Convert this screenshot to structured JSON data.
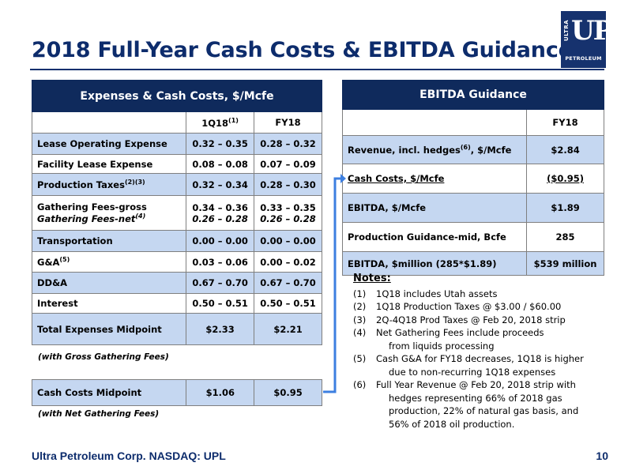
{
  "title": "2018 Full-Year Cash Costs & EBITDA Guidance",
  "logo": {
    "ultra": "ULTRA",
    "up": "UP",
    "petroleum": "PETROLEUM"
  },
  "expenses_table": {
    "header": "Expenses & Cash Costs, $/Mcfe",
    "col1": "1Q18",
    "col1_sup": "(1)",
    "col2": "FY18",
    "rows": [
      {
        "label": "Lease Operating Expense",
        "sup": "",
        "q": "0.32 – 0.35",
        "fy": "0.28 – 0.32"
      },
      {
        "label": "Facility Lease Expense",
        "sup": "",
        "q": "0.08 – 0.08",
        "fy": "0.07 – 0.09"
      },
      {
        "label": "Production Taxes",
        "sup": "(2)(3)",
        "q": "0.32 – 0.34",
        "fy": "0.28 – 0.30"
      },
      {
        "label": "Gathering Fees-gross",
        "label2": "Gathering Fees-net",
        "sup2": "(4)",
        "q": "0.34 – 0.36",
        "q2": "0.26 – 0.28",
        "fy": "0.33 – 0.35",
        "fy2": "0.26 – 0.28"
      },
      {
        "label": "Transportation",
        "sup": "",
        "q": "0.00 – 0.00",
        "fy": "0.00 – 0.00"
      },
      {
        "label": "G&A",
        "sup": "(5)",
        "q": "0.03 – 0.06",
        "fy": "0.00 – 0.02"
      },
      {
        "label": "DD&A",
        "sup": "",
        "q": "0.67 – 0.70",
        "fy": "0.67 – 0.70"
      },
      {
        "label": "Interest",
        "sup": "",
        "q": "0.50 – 0.51",
        "fy": "0.50 – 0.51"
      },
      {
        "label": "Total Expenses Midpoint",
        "sup": "",
        "q": "$2.33",
        "fy": "$2.21"
      }
    ],
    "caption": "(with Gross Gathering Fees)"
  },
  "cash_costs_table": {
    "label": "Cash Costs Midpoint",
    "q": "$1.06",
    "fy": "$0.95",
    "caption": "(with Net Gathering Fees)"
  },
  "ebitda_table": {
    "header": "EBITDA Guidance",
    "col": "FY18",
    "rows": [
      {
        "label": "Revenue, incl. hedges",
        "sup": "(6)",
        "label_tail": ", $/Mcfe",
        "value": "$2.84"
      },
      {
        "label": "Cash Costs, $/Mcfe",
        "sup": "",
        "label_tail": "",
        "value": "($0.95)"
      },
      {
        "label": "EBITDA,  $/Mcfe",
        "sup": "",
        "label_tail": "",
        "value": "$1.89"
      },
      {
        "label": "Production Guidance-mid, Bcfe",
        "sup": "",
        "label_tail": "",
        "value": "285"
      },
      {
        "label": "EBITDA, $million (285*$1.89)",
        "sup": "",
        "label_tail": "",
        "value": "$539 million"
      }
    ]
  },
  "notes": {
    "heading": "Notes:",
    "items": [
      {
        "num": "(1)",
        "text": "1Q18 includes Utah assets",
        "cont": []
      },
      {
        "num": "(2)",
        "text": "1Q18 Production Taxes @ $3.00 / $60.00",
        "cont": []
      },
      {
        "num": "(3)",
        "text": "2Q-4Q18 Prod Taxes @ Feb 20, 2018 strip",
        "cont": []
      },
      {
        "num": "(4)",
        "text": "Net Gathering Fees include proceeds",
        "cont": [
          "from liquids processing"
        ]
      },
      {
        "num": "(5)",
        "text": "Cash G&A for FY18 decreases, 1Q18 is higher",
        "cont": [
          "due to non-recurring 1Q18 expenses"
        ]
      },
      {
        "num": "(6)",
        "text": "Full Year Revenue @ Feb 20, 2018 strip with",
        "cont": [
          "hedges representing 66% of 2018 gas",
          "production, 22% of natural gas basis, and",
          "56% of 2018 oil production."
        ]
      }
    ]
  },
  "footer": {
    "text": "Ultra Petroleum Corp. NASDAQ: UPL",
    "page": "10"
  },
  "colors": {
    "navy": "#0f2a5c",
    "title_blue": "#0d2c6c",
    "row_blue": "#c5d7f1",
    "connector": "#3d7fe0"
  }
}
